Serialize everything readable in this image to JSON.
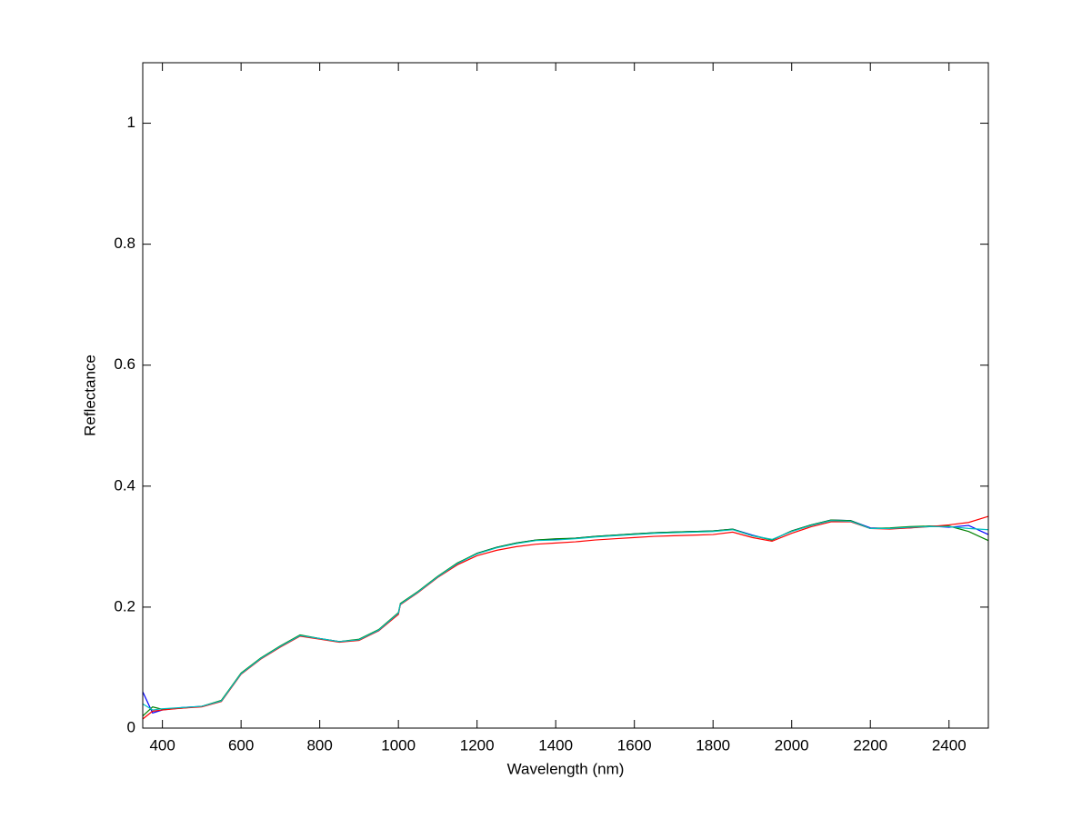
{
  "chart_data": {
    "type": "line",
    "xlabel": "Wavelength (nm)",
    "ylabel": "Reflectance",
    "x": [
      350,
      375,
      400,
      450,
      500,
      550,
      600,
      650,
      700,
      750,
      800,
      850,
      900,
      950,
      1000,
      1005,
      1050,
      1100,
      1150,
      1200,
      1250,
      1300,
      1350,
      1400,
      1450,
      1500,
      1550,
      1600,
      1650,
      1700,
      1750,
      1800,
      1850,
      1900,
      1950,
      2000,
      2050,
      2100,
      2150,
      2200,
      2250,
      2300,
      2350,
      2400,
      2450,
      2500
    ],
    "series": [
      {
        "color": "#0000ff",
        "values": [
          0.06,
          0.025,
          0.03,
          0.034,
          0.036,
          0.045,
          0.09,
          0.115,
          0.135,
          0.153,
          0.148,
          0.143,
          0.146,
          0.161,
          0.189,
          0.205,
          0.225,
          0.25,
          0.272,
          0.289,
          0.299,
          0.306,
          0.311,
          0.312,
          0.314,
          0.317,
          0.319,
          0.321,
          0.323,
          0.324,
          0.325,
          0.326,
          0.329,
          0.319,
          0.311,
          0.326,
          0.336,
          0.344,
          0.343,
          0.331,
          0.33,
          0.331,
          0.334,
          0.332,
          0.335,
          0.32
        ]
      },
      {
        "color": "#008000",
        "values": [
          0.02,
          0.035,
          0.031,
          0.033,
          0.036,
          0.046,
          0.091,
          0.116,
          0.136,
          0.154,
          0.148,
          0.143,
          0.147,
          0.163,
          0.191,
          0.206,
          0.226,
          0.251,
          0.273,
          0.289,
          0.299,
          0.306,
          0.311,
          0.313,
          0.314,
          0.317,
          0.319,
          0.321,
          0.323,
          0.324,
          0.325,
          0.326,
          0.329,
          0.318,
          0.311,
          0.326,
          0.336,
          0.344,
          0.343,
          0.33,
          0.331,
          0.333,
          0.334,
          0.334,
          0.325,
          0.31
        ]
      },
      {
        "color": "#ff0000",
        "values": [
          0.015,
          0.028,
          0.03,
          0.033,
          0.035,
          0.044,
          0.089,
          0.114,
          0.134,
          0.152,
          0.147,
          0.142,
          0.145,
          0.161,
          0.188,
          0.204,
          0.224,
          0.249,
          0.27,
          0.285,
          0.294,
          0.3,
          0.304,
          0.306,
          0.308,
          0.311,
          0.313,
          0.315,
          0.317,
          0.318,
          0.319,
          0.32,
          0.324,
          0.315,
          0.309,
          0.322,
          0.333,
          0.341,
          0.341,
          0.33,
          0.329,
          0.331,
          0.333,
          0.336,
          0.34,
          0.35
        ]
      },
      {
        "color": "#00bfbf",
        "values": [
          0.04,
          0.03,
          0.032,
          0.034,
          0.036,
          0.045,
          0.09,
          0.115,
          0.135,
          0.153,
          0.148,
          0.143,
          0.146,
          0.162,
          0.19,
          0.205,
          0.225,
          0.25,
          0.272,
          0.288,
          0.298,
          0.305,
          0.31,
          0.311,
          0.313,
          0.316,
          0.318,
          0.32,
          0.322,
          0.323,
          0.324,
          0.325,
          0.328,
          0.318,
          0.312,
          0.325,
          0.335,
          0.343,
          0.342,
          0.33,
          0.33,
          0.332,
          0.333,
          0.333,
          0.33,
          0.328
        ]
      }
    ],
    "xlim": [
      350,
      2500
    ],
    "ylim": [
      0,
      1.1
    ],
    "xticks": [
      400,
      600,
      800,
      1000,
      1200,
      1400,
      1600,
      1800,
      2000,
      2200,
      2400
    ],
    "yticks": [
      0,
      0.2,
      0.4,
      0.6,
      0.8,
      1
    ]
  }
}
